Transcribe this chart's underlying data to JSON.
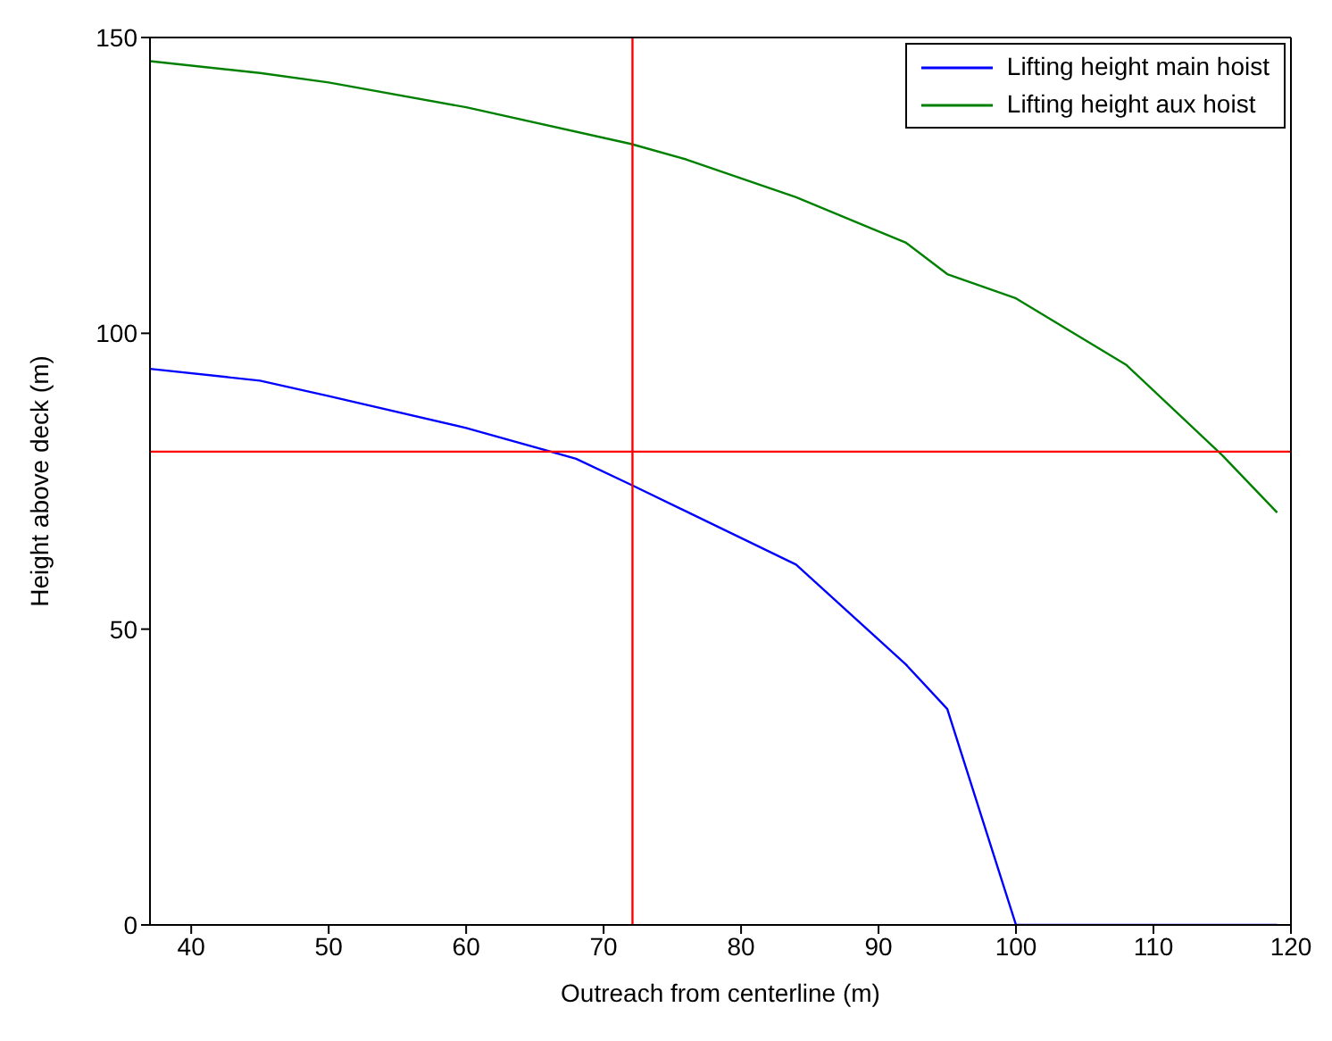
{
  "chart_data": {
    "type": "line",
    "xlabel": "Outreach from centerline (m)",
    "ylabel": "Height above deck (m)",
    "xlim": [
      37,
      120
    ],
    "xticks": [
      40,
      50,
      60,
      70,
      80,
      90,
      100,
      110,
      120
    ],
    "ylim": [
      0,
      150
    ],
    "yticks": [
      0,
      50,
      100,
      150
    ],
    "grid": false,
    "legend": "top right",
    "line_style": "solid",
    "series": [
      {
        "name": "Lifting height main hoist",
        "color": "#0000ff",
        "x": [
          37,
          45,
          50,
          60,
          68,
          72,
          84,
          92,
          95,
          100,
          119
        ],
        "values": [
          94,
          92,
          89.4,
          84,
          78.8,
          74.4,
          60.9,
          44,
          36.5,
          0,
          0
        ]
      },
      {
        "name": "Lifting height aux hoist",
        "color": "#008000",
        "x": [
          37,
          45,
          50,
          60,
          72,
          76,
          84,
          92,
          95,
          100,
          108,
          115,
          119
        ],
        "values": [
          146,
          144,
          142.4,
          138.2,
          132,
          129.4,
          123,
          115.3,
          110,
          105.9,
          94.7,
          79.4,
          69.7
        ]
      }
    ],
    "ref_lines": [
      {
        "axis": "x",
        "value": 72.1,
        "color": "#ff0000"
      },
      {
        "axis": "y",
        "value": 80,
        "color": "#ff0000"
      }
    ]
  }
}
